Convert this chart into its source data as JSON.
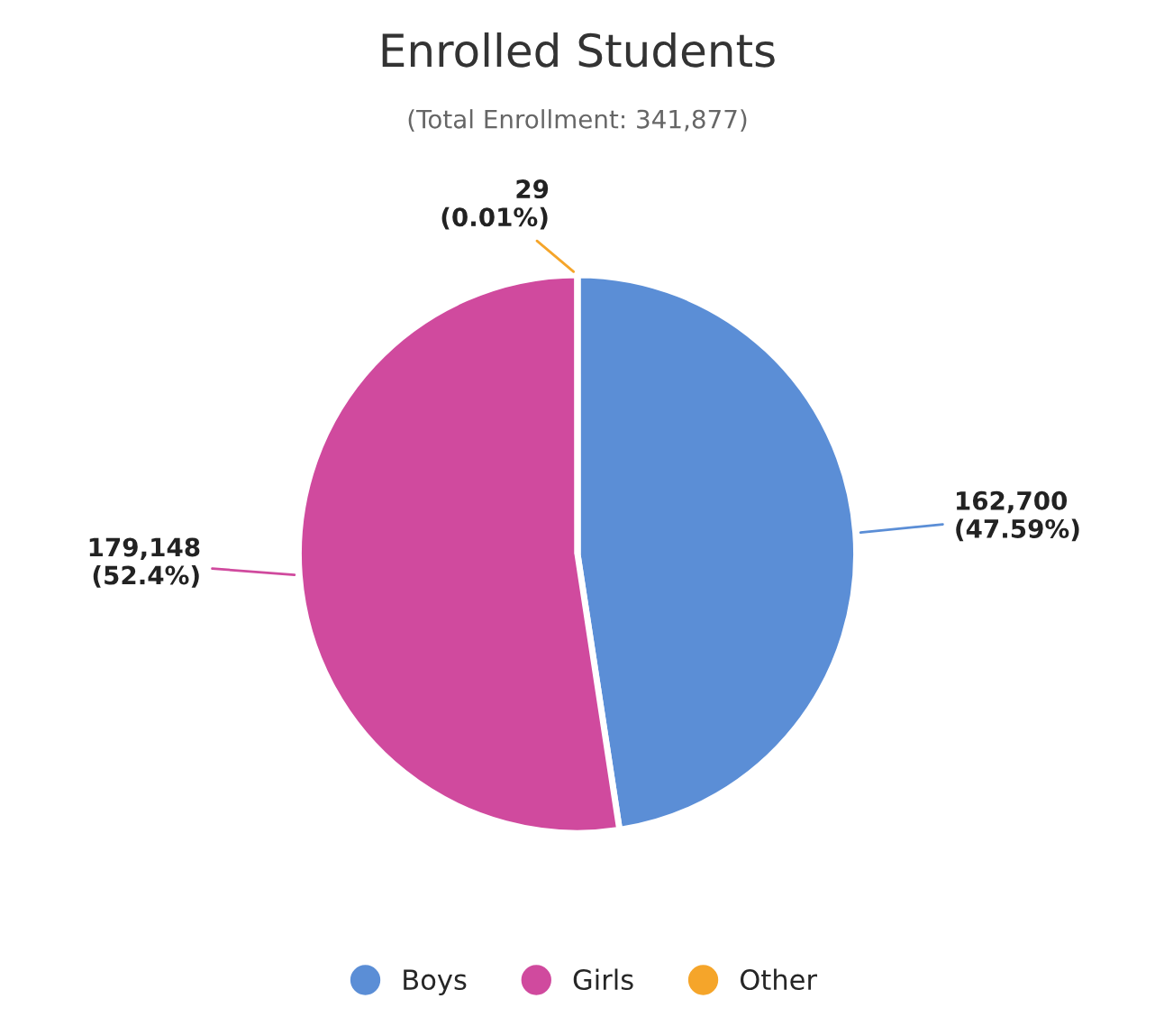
{
  "chart_data": {
    "type": "pie",
    "title": "Enrolled Students",
    "subtitle": "(Total Enrollment: 341,877)",
    "categories": [
      "Boys",
      "Girls",
      "Other"
    ],
    "values": [
      162700,
      179148,
      29
    ],
    "value_labels": [
      "162,700\n(47.59%)",
      "179,148\n(52.4%)",
      "29\n(0.01%)"
    ],
    "colors": [
      "#5b8ed6",
      "#d04a9e",
      "#f5a52a"
    ],
    "legend": "bottom"
  }
}
